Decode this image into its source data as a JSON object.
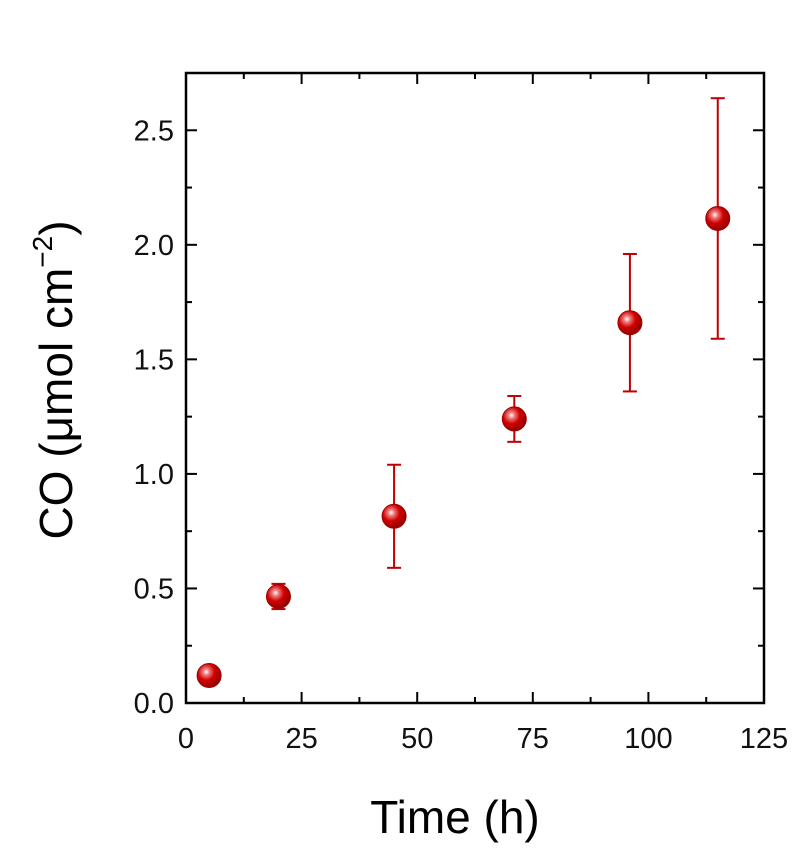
{
  "chart_data": {
    "type": "scatter",
    "title": "",
    "xlabel": "Time (h)",
    "ylabel_main": "CO (μmol cm",
    "ylabel_sup": "−2",
    "ylabel_close": ")",
    "xlim": [
      0,
      125
    ],
    "ylim": [
      0,
      2.75
    ],
    "xticks": [
      0,
      25,
      50,
      75,
      100,
      125
    ],
    "yticks": [
      0.0,
      0.5,
      1.0,
      1.5,
      2.0,
      2.5
    ],
    "xtick_labels": [
      "0",
      "25",
      "50",
      "75",
      "100",
      "125"
    ],
    "ytick_labels": [
      "0.0",
      "0.5",
      "1.0",
      "1.5",
      "2.0",
      "2.5"
    ],
    "grid": false,
    "legend": "none",
    "series": [
      {
        "x": [
          5,
          20,
          45,
          71,
          96,
          115
        ],
        "y": [
          0.12,
          0.465,
          0.815,
          1.24,
          1.66,
          2.115
        ],
        "err_low": [
          0.11,
          0.41,
          0.59,
          1.14,
          1.36,
          1.59
        ],
        "err_high": [
          0.13,
          0.52,
          1.04,
          1.34,
          1.96,
          2.64
        ],
        "color": "#c00000"
      }
    ]
  }
}
